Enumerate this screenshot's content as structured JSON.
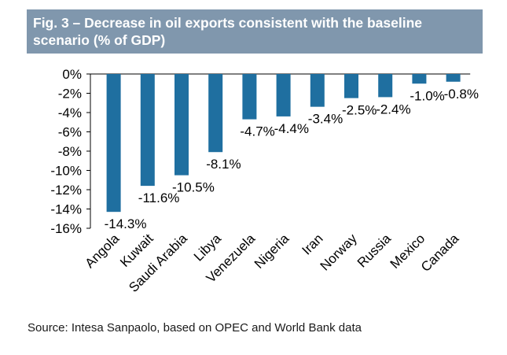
{
  "figure": {
    "title": "Fig. 3 – Decrease in oil exports consistent with the baseline scenario (% of GDP)",
    "source": "Source: Intesa Sanpaolo, based on OPEC and World Bank data"
  },
  "chart_data": {
    "type": "bar",
    "title": "Fig. 3 – Decrease in oil exports consistent with the baseline scenario (% of GDP)",
    "categories": [
      "Angola",
      "Kuwait",
      "Saudi Arabia",
      "Libya",
      "Venezuela",
      "Nigeria",
      "Iran",
      "Norway",
      "Russia",
      "Mexico",
      "Canada"
    ],
    "values": [
      -14.3,
      -11.6,
      -10.5,
      -8.1,
      -4.7,
      -4.4,
      -3.4,
      -2.5,
      -2.4,
      -1.0,
      -0.8
    ],
    "labels": [
      "-14.3%",
      "-11.6%",
      "-10.5%",
      "-8.1%",
      "-4.7%",
      "-4.4%",
      "-3.4%",
      "-2.5%",
      "-2.4%",
      "-1.0%",
      "-0.8%"
    ],
    "yticks": [
      0,
      -2,
      -4,
      -6,
      -8,
      -10,
      -12,
      -14,
      -16
    ],
    "ytick_labels": [
      "0%",
      "-2%",
      "-4%",
      "-6%",
      "-8%",
      "-10%",
      "-12%",
      "-14%",
      "-16%"
    ],
    "ylim": [
      -16,
      0
    ],
    "xlabel": "",
    "ylabel": "",
    "grid": false,
    "bar_color": "#1f6fa0"
  }
}
